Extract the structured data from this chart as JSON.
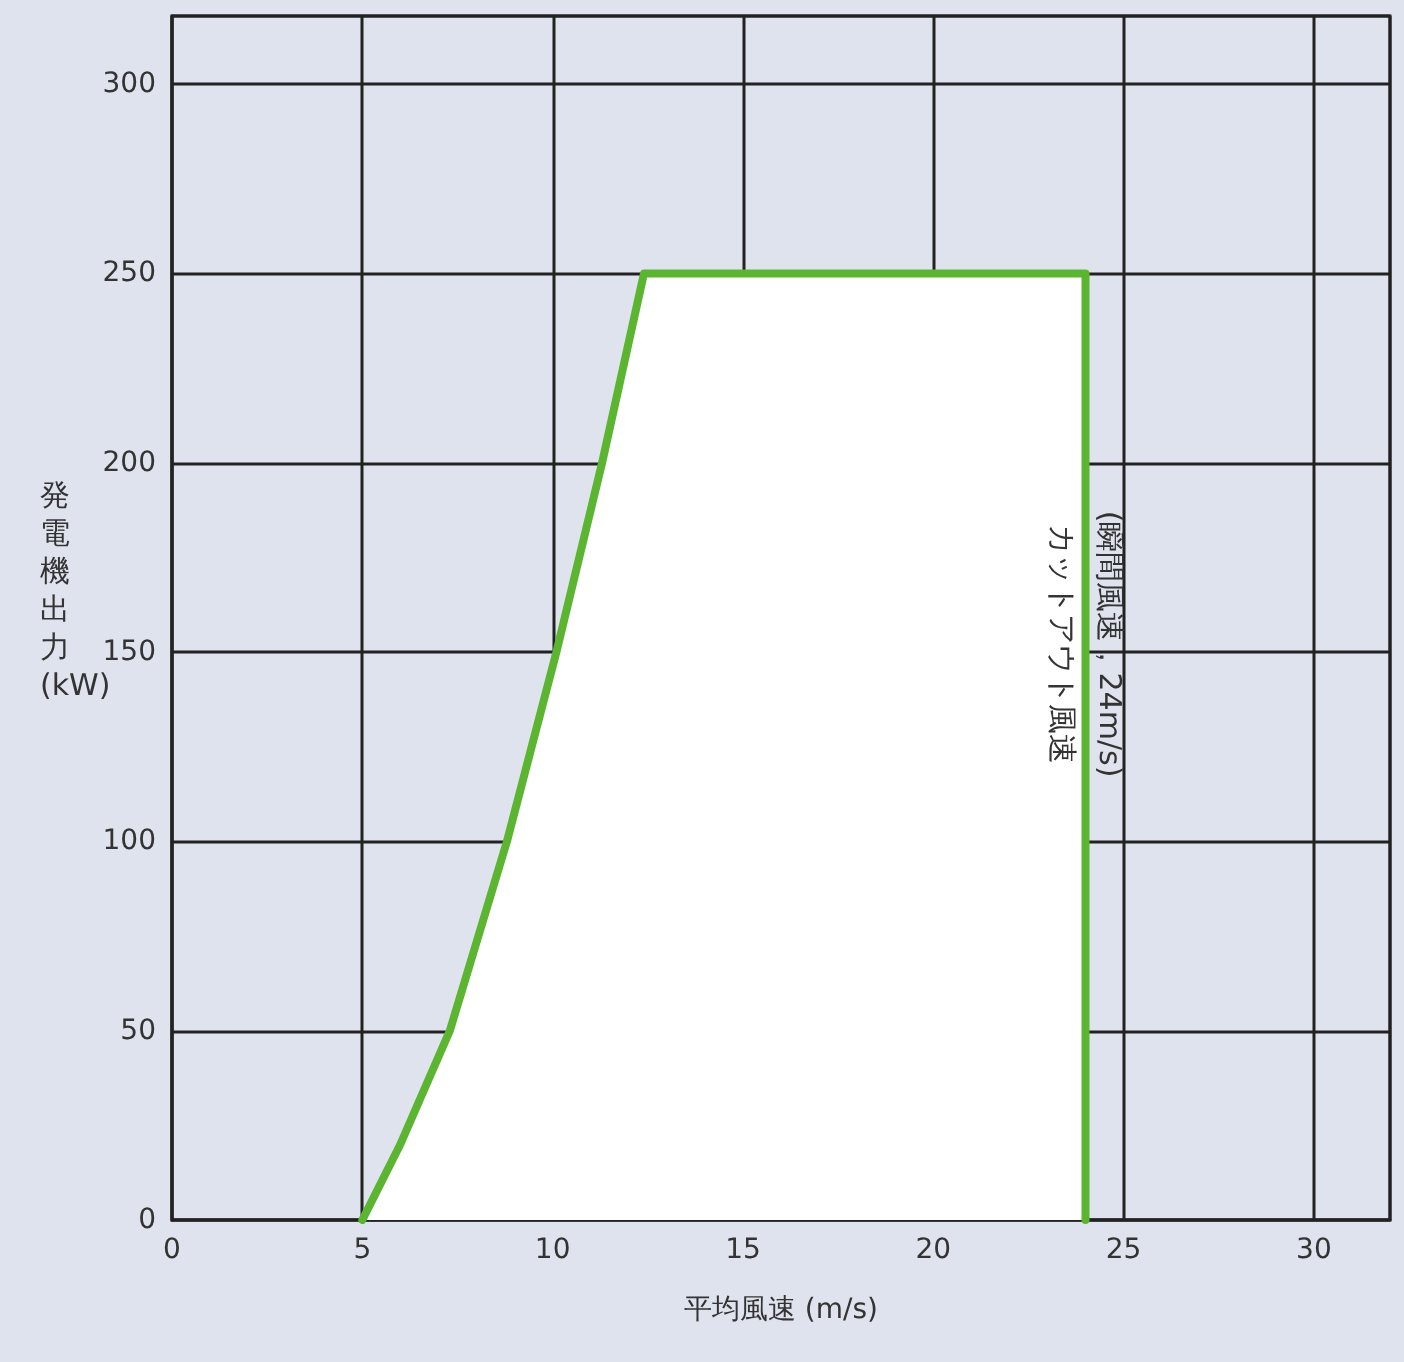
{
  "chart_data": {
    "type": "area",
    "xlabel": "平均風速 (m/s)",
    "ylabel": "発電機出力(kW)",
    "x": [
      5.0,
      6.0,
      7.3,
      8.8,
      10.1,
      11.3,
      12.4,
      24,
      24
    ],
    "series": [
      {
        "color": "#5cb531",
        "values": [
          0,
          20,
          50,
          100,
          150,
          200,
          250,
          250,
          0
        ]
      }
    ],
    "xlim": [
      0,
      32
    ],
    "ylim": [
      0,
      318
    ],
    "xticks": [
      0,
      5,
      10,
      15,
      20,
      25,
      30
    ],
    "yticks": [
      0,
      50,
      100,
      150,
      200,
      250,
      300
    ],
    "grid": true,
    "marker": "none",
    "line_style": "solid",
    "annotations": [
      {
        "text": "カットアウト風速\n(瞬間風速，24m/s)",
        "x": 24,
        "y": 150
      }
    ]
  }
}
